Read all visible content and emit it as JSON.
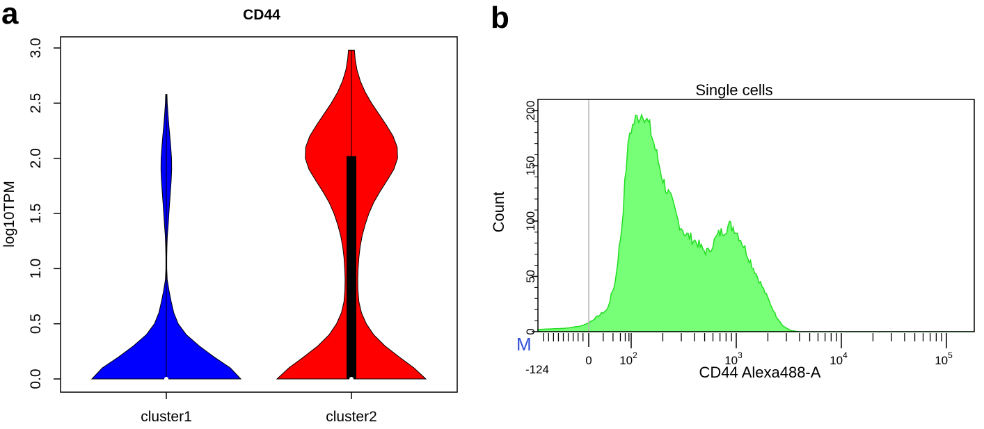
{
  "panels": {
    "a": {
      "letter": "a"
    },
    "b": {
      "letter": "b"
    }
  },
  "chart_data": [
    {
      "type": "violin",
      "title": "CD44",
      "ylabel": "log10TPM",
      "ylim": [
        0,
        3
      ],
      "yticks": [
        "0.0",
        "0.5",
        "1.0",
        "1.5",
        "2.0",
        "2.5",
        "3.0"
      ],
      "categories": [
        "cluster1",
        "cluster2"
      ],
      "series": [
        {
          "color": "#0000ff",
          "max": 2.58,
          "median": 0,
          "density": [
            [
              0,
              1.0
            ],
            [
              0.1,
              0.86
            ],
            [
              0.2,
              0.64
            ],
            [
              0.3,
              0.44
            ],
            [
              0.4,
              0.27
            ],
            [
              0.5,
              0.16
            ],
            [
              0.6,
              0.1
            ],
            [
              0.7,
              0.065
            ],
            [
              0.8,
              0.036
            ],
            [
              0.9,
              0.012
            ],
            [
              1.0,
              0.006
            ],
            [
              1.1,
              0.006
            ],
            [
              1.2,
              0.008
            ],
            [
              1.3,
              0.014
            ],
            [
              1.4,
              0.025
            ],
            [
              1.5,
              0.035
            ],
            [
              1.6,
              0.045
            ],
            [
              1.7,
              0.055
            ],
            [
              1.8,
              0.065
            ],
            [
              1.9,
              0.072
            ],
            [
              2.0,
              0.07
            ],
            [
              2.1,
              0.06
            ],
            [
              2.2,
              0.048
            ],
            [
              2.3,
              0.034
            ],
            [
              2.4,
              0.022
            ],
            [
              2.5,
              0.012
            ],
            [
              2.58,
              0.008
            ]
          ]
        },
        {
          "color": "#ff0000",
          "max": 2.98,
          "median": 0,
          "box": [
            0,
            2.02
          ],
          "density": [
            [
              0,
              1.0
            ],
            [
              0.1,
              0.84
            ],
            [
              0.2,
              0.64
            ],
            [
              0.3,
              0.45
            ],
            [
              0.4,
              0.3
            ],
            [
              0.5,
              0.2
            ],
            [
              0.6,
              0.135
            ],
            [
              0.7,
              0.1
            ],
            [
              0.8,
              0.088
            ],
            [
              0.9,
              0.085
            ],
            [
              1.0,
              0.09
            ],
            [
              1.1,
              0.1
            ],
            [
              1.2,
              0.118
            ],
            [
              1.3,
              0.145
            ],
            [
              1.4,
              0.185
            ],
            [
              1.5,
              0.235
            ],
            [
              1.6,
              0.3
            ],
            [
              1.7,
              0.385
            ],
            [
              1.8,
              0.48
            ],
            [
              1.9,
              0.57
            ],
            [
              2.0,
              0.62
            ],
            [
              2.1,
              0.615
            ],
            [
              2.2,
              0.56
            ],
            [
              2.3,
              0.47
            ],
            [
              2.4,
              0.37
            ],
            [
              2.5,
              0.27
            ],
            [
              2.6,
              0.185
            ],
            [
              2.7,
              0.12
            ],
            [
              2.8,
              0.075
            ],
            [
              2.9,
              0.05
            ],
            [
              2.98,
              0.04
            ]
          ]
        }
      ]
    },
    {
      "type": "area",
      "title": "Single cells",
      "xlabel": "CD44 Alexa488-A",
      "ylabel": "Count",
      "ylim": [
        0,
        210
      ],
      "yticks": [
        "0",
        "50",
        "100",
        "150",
        "200"
      ],
      "xtick_labels": {
        "neg": "-124",
        "zero": "0",
        "base": "10",
        "exps": [
          "2",
          "3",
          "4",
          "5"
        ]
      },
      "marker_label": "M",
      "fill_color": "#77ff77",
      "line_color": "#22dd22",
      "histogram": [
        [
          -124,
          2
        ],
        [
          -60,
          3
        ],
        [
          -20,
          5
        ],
        [
          0,
          8
        ],
        [
          15,
          20
        ],
        [
          30,
          45
        ],
        [
          50,
          95
        ],
        [
          70,
          150
        ],
        [
          90,
          180
        ],
        [
          110,
          192
        ],
        [
          130,
          198
        ],
        [
          150,
          185
        ],
        [
          175,
          160
        ],
        [
          200,
          138
        ],
        [
          240,
          118
        ],
        [
          280,
          100
        ],
        [
          330,
          88
        ],
        [
          380,
          84
        ],
        [
          430,
          80
        ],
        [
          480,
          74
        ],
        [
          540,
          72
        ],
        [
          600,
          80
        ],
        [
          680,
          88
        ],
        [
          760,
          92
        ],
        [
          860,
          96
        ],
        [
          960,
          94
        ],
        [
          1100,
          84
        ],
        [
          1250,
          72
        ],
        [
          1450,
          58
        ],
        [
          1700,
          44
        ],
        [
          2000,
          30
        ],
        [
          2400,
          14
        ],
        [
          2800,
          5
        ],
        [
          3300,
          1
        ],
        [
          4000,
          0
        ],
        [
          100000,
          0
        ]
      ]
    }
  ]
}
